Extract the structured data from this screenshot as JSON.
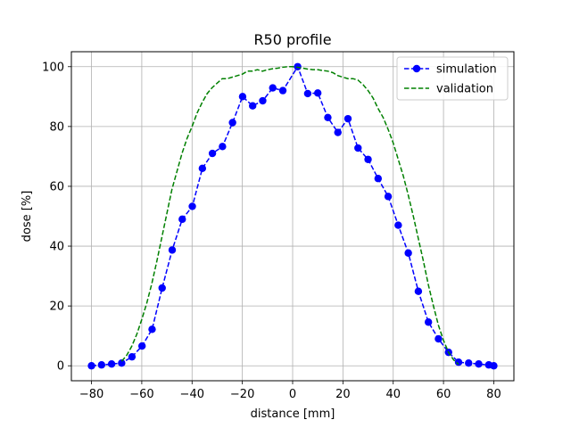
{
  "chart_data": {
    "type": "line",
    "title": "R50 profile",
    "xlabel": "distance [mm]",
    "ylabel": "dose [%]",
    "xlim": [
      -88,
      88
    ],
    "ylim": [
      -5,
      105
    ],
    "xticks": [
      -80,
      -60,
      -40,
      -20,
      0,
      20,
      40,
      60,
      80
    ],
    "yticks": [
      0,
      20,
      40,
      60,
      80,
      100
    ],
    "grid": true,
    "legend_position": "top-right",
    "series": [
      {
        "name": "simulation",
        "color": "#0000ff",
        "style": "dashed-with-circle-markers",
        "x": [
          -80,
          -76,
          -72,
          -68,
          -63.9,
          -59.9,
          -55.9,
          -51.9,
          -47.9,
          -43.9,
          -39.9,
          -35.9,
          -31.9,
          -27.9,
          -23.9,
          -19.9,
          -15.9,
          -11.9,
          -7.9,
          -3.9,
          2,
          6,
          10,
          14,
          18,
          22,
          26,
          30,
          34,
          38,
          42,
          46,
          50,
          54,
          58,
          62,
          66,
          70,
          74,
          78,
          80
        ],
        "y": [
          0,
          0.3,
          0.6,
          0.9,
          3,
          6.6,
          12.2,
          26,
          38.7,
          49,
          53.3,
          66,
          71,
          73.3,
          81.3,
          90,
          86.9,
          88.6,
          92.9,
          92,
          100,
          91,
          91.2,
          83,
          78,
          82.6,
          72.8,
          69,
          62.6,
          56.6,
          47,
          37.7,
          24.9,
          14.6,
          9,
          4.5,
          1.2,
          0.9,
          0.6,
          0.3,
          0
        ]
      },
      {
        "name": "validation",
        "color": "#008000",
        "style": "dashed",
        "x": [
          -68,
          -66,
          -64,
          -62,
          -60,
          -58,
          -56,
          -54,
          -52,
          -50,
          -48,
          -46,
          -44,
          -42,
          -40,
          -38,
          -36,
          -34,
          -32,
          -30,
          -28,
          -26,
          -24,
          -22,
          -20,
          -18,
          -16,
          -14,
          -12,
          -10,
          -8,
          -6,
          -4,
          -2,
          0,
          2,
          4,
          6,
          8,
          10,
          12,
          14,
          16,
          18,
          20,
          22,
          24,
          26,
          28,
          30,
          32,
          34,
          36,
          38,
          40,
          42,
          44,
          46,
          48,
          50,
          52,
          54,
          56,
          58,
          60,
          62,
          64,
          66
        ],
        "y": [
          1.5,
          3.5,
          6.5,
          10.5,
          15.5,
          21,
          27.5,
          35,
          43,
          51,
          59,
          65,
          71,
          76,
          80,
          84.5,
          88,
          91,
          93,
          94.5,
          96,
          96,
          96.5,
          97,
          97.5,
          98.5,
          98.5,
          99,
          98.5,
          99,
          99.3,
          99.5,
          99.8,
          100,
          100,
          99.8,
          99.5,
          99.2,
          99,
          99,
          98.7,
          98.5,
          98,
          97,
          96.5,
          96,
          96,
          95.5,
          94,
          92,
          89.5,
          86,
          83,
          79,
          74.5,
          69,
          63.5,
          57,
          50,
          42.5,
          35,
          27,
          20,
          13.5,
          8.5,
          4.5,
          2,
          0.5
        ]
      }
    ]
  }
}
